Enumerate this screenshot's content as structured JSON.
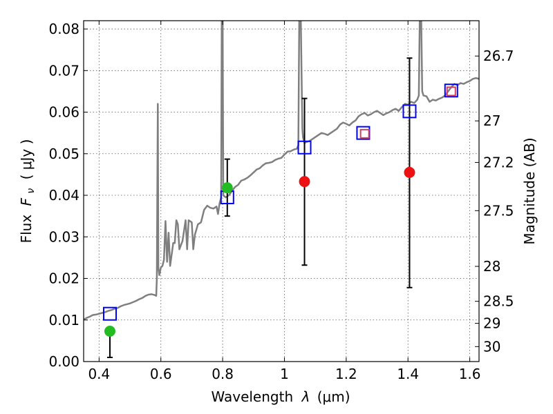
{
  "chart_data": {
    "type": "line",
    "xlabel": "Wavelength",
    "xlabel_symbol": "λ",
    "xlabel_unit": "(μm)",
    "ylabel": "Flux",
    "ylabel_symbol": "F",
    "ylabel_sub": "ν",
    "ylabel_unit": "( μJy )",
    "y2label": "Magnitude (AB)",
    "xlim": [
      0.35,
      1.63
    ],
    "ylim": [
      0.0,
      0.082
    ],
    "grid": true,
    "x_ticks": [
      {
        "value": 0.4,
        "label": "0.4"
      },
      {
        "value": 0.6,
        "label": "0.6"
      },
      {
        "value": 0.8,
        "label": "0.8"
      },
      {
        "value": 1.0,
        "label": "1"
      },
      {
        "value": 1.2,
        "label": "1.2"
      },
      {
        "value": 1.4,
        "label": "1.4"
      },
      {
        "value": 1.6,
        "label": "1.6"
      }
    ],
    "y_ticks": [
      {
        "value": 0.0,
        "label": "0.00"
      },
      {
        "value": 0.01,
        "label": "0.01"
      },
      {
        "value": 0.02,
        "label": "0.02"
      },
      {
        "value": 0.03,
        "label": "0.03"
      },
      {
        "value": 0.04,
        "label": "0.04"
      },
      {
        "value": 0.05,
        "label": "0.05"
      },
      {
        "value": 0.06,
        "label": "0.06"
      },
      {
        "value": 0.07,
        "label": "0.07"
      },
      {
        "value": 0.08,
        "label": "0.08"
      }
    ],
    "y2_ticks": [
      {
        "flux": 0.0735,
        "label": "26.7"
      },
      {
        "flux": 0.0579,
        "label": "27"
      },
      {
        "flux": 0.0479,
        "label": "27.2"
      },
      {
        "flux": 0.0363,
        "label": "27.5"
      },
      {
        "flux": 0.0229,
        "label": "28"
      },
      {
        "flux": 0.0145,
        "label": "28.5"
      },
      {
        "flux": 0.0092,
        "label": "29"
      },
      {
        "flux": 0.0036,
        "label": "30"
      }
    ],
    "series": [
      {
        "kind": "spectrum",
        "color": "#7f7f7f",
        "points": [
          [
            0.35,
            0.0101
          ],
          [
            0.36,
            0.0105
          ],
          [
            0.37,
            0.0108
          ],
          [
            0.38,
            0.0112
          ],
          [
            0.39,
            0.0113
          ],
          [
            0.4,
            0.0115
          ],
          [
            0.41,
            0.0117
          ],
          [
            0.42,
            0.0119
          ],
          [
            0.43,
            0.0122
          ],
          [
            0.44,
            0.0124
          ],
          [
            0.45,
            0.0127
          ],
          [
            0.46,
            0.0129
          ],
          [
            0.47,
            0.0133
          ],
          [
            0.48,
            0.0136
          ],
          [
            0.49,
            0.0138
          ],
          [
            0.5,
            0.014
          ],
          [
            0.51,
            0.0143
          ],
          [
            0.52,
            0.0146
          ],
          [
            0.53,
            0.015
          ],
          [
            0.54,
            0.0153
          ],
          [
            0.55,
            0.0158
          ],
          [
            0.56,
            0.0161
          ],
          [
            0.57,
            0.0162
          ],
          [
            0.58,
            0.016
          ],
          [
            0.585,
            0.0158
          ],
          [
            0.587,
            0.02
          ],
          [
            0.59,
            0.062
          ],
          [
            0.592,
            0.0225
          ],
          [
            0.595,
            0.0208
          ],
          [
            0.6,
            0.0226
          ],
          [
            0.605,
            0.023
          ],
          [
            0.61,
            0.0245
          ],
          [
            0.615,
            0.0338
          ],
          [
            0.62,
            0.024
          ],
          [
            0.625,
            0.031
          ],
          [
            0.63,
            0.023
          ],
          [
            0.64,
            0.0285
          ],
          [
            0.645,
            0.0285
          ],
          [
            0.65,
            0.034
          ],
          [
            0.655,
            0.033
          ],
          [
            0.66,
            0.027
          ],
          [
            0.67,
            0.029
          ],
          [
            0.68,
            0.034
          ],
          [
            0.685,
            0.027
          ],
          [
            0.69,
            0.034
          ],
          [
            0.7,
            0.0335
          ],
          [
            0.705,
            0.027
          ],
          [
            0.71,
            0.0305
          ],
          [
            0.72,
            0.033
          ],
          [
            0.73,
            0.0335
          ],
          [
            0.74,
            0.0365
          ],
          [
            0.75,
            0.0375
          ],
          [
            0.76,
            0.037
          ],
          [
            0.77,
            0.0368
          ],
          [
            0.78,
            0.0373
          ],
          [
            0.785,
            0.0355
          ],
          [
            0.79,
            0.038
          ],
          [
            0.795,
            0.0395
          ],
          [
            0.797,
            0.082
          ],
          [
            0.8,
            0.082
          ],
          [
            0.802,
            0.04
          ],
          [
            0.81,
            0.0395
          ],
          [
            0.82,
            0.04
          ],
          [
            0.83,
            0.041
          ],
          [
            0.84,
            0.042
          ],
          [
            0.85,
            0.0425
          ],
          [
            0.86,
            0.0435
          ],
          [
            0.87,
            0.0438
          ],
          [
            0.88,
            0.0442
          ],
          [
            0.89,
            0.0448
          ],
          [
            0.9,
            0.0455
          ],
          [
            0.91,
            0.0462
          ],
          [
            0.92,
            0.0465
          ],
          [
            0.93,
            0.0472
          ],
          [
            0.94,
            0.0477
          ],
          [
            0.95,
            0.0478
          ],
          [
            0.96,
            0.048
          ],
          [
            0.97,
            0.0485
          ],
          [
            0.98,
            0.0488
          ],
          [
            0.99,
            0.049
          ],
          [
            1.0,
            0.0498
          ],
          [
            1.01,
            0.0505
          ],
          [
            1.02,
            0.0506
          ],
          [
            1.03,
            0.051
          ],
          [
            1.04,
            0.0512
          ],
          [
            1.045,
            0.052
          ],
          [
            1.048,
            0.082
          ],
          [
            1.053,
            0.082
          ],
          [
            1.058,
            0.056
          ],
          [
            1.06,
            0.054
          ],
          [
            1.065,
            0.0525
          ],
          [
            1.07,
            0.0528
          ],
          [
            1.08,
            0.053
          ],
          [
            1.09,
            0.0535
          ],
          [
            1.1,
            0.054
          ],
          [
            1.11,
            0.0545
          ],
          [
            1.12,
            0.055
          ],
          [
            1.13,
            0.0548
          ],
          [
            1.14,
            0.0545
          ],
          [
            1.15,
            0.055
          ],
          [
            1.16,
            0.0555
          ],
          [
            1.17,
            0.056
          ],
          [
            1.18,
            0.057
          ],
          [
            1.19,
            0.0575
          ],
          [
            1.2,
            0.0572
          ],
          [
            1.21,
            0.0568
          ],
          [
            1.22,
            0.0575
          ],
          [
            1.23,
            0.058
          ],
          [
            1.24,
            0.059
          ],
          [
            1.25,
            0.0595
          ],
          [
            1.26,
            0.0598
          ],
          [
            1.27,
            0.0592
          ],
          [
            1.28,
            0.0595
          ],
          [
            1.29,
            0.06
          ],
          [
            1.3,
            0.0603
          ],
          [
            1.31,
            0.0598
          ],
          [
            1.32,
            0.0593
          ],
          [
            1.33,
            0.0597
          ],
          [
            1.34,
            0.06
          ],
          [
            1.35,
            0.0605
          ],
          [
            1.36,
            0.0608
          ],
          [
            1.37,
            0.0603
          ],
          [
            1.38,
            0.0612
          ],
          [
            1.39,
            0.062
          ],
          [
            1.4,
            0.0618
          ],
          [
            1.41,
            0.0625
          ],
          [
            1.42,
            0.0622
          ],
          [
            1.43,
            0.063
          ],
          [
            1.435,
            0.064
          ],
          [
            1.438,
            0.082
          ],
          [
            1.443,
            0.082
          ],
          [
            1.446,
            0.065
          ],
          [
            1.45,
            0.064
          ],
          [
            1.46,
            0.0638
          ],
          [
            1.47,
            0.0625
          ],
          [
            1.48,
            0.063
          ],
          [
            1.49,
            0.0628
          ],
          [
            1.5,
            0.0632
          ],
          [
            1.51,
            0.0635
          ],
          [
            1.52,
            0.064
          ],
          [
            1.53,
            0.065
          ],
          [
            1.54,
            0.066
          ],
          [
            1.55,
            0.0668
          ],
          [
            1.56,
            0.0665
          ],
          [
            1.57,
            0.067
          ],
          [
            1.58,
            0.0668
          ],
          [
            1.59,
            0.0672
          ],
          [
            1.6,
            0.0675
          ],
          [
            1.61,
            0.068
          ],
          [
            1.62,
            0.0682
          ],
          [
            1.63,
            0.068
          ]
        ]
      },
      {
        "kind": "model-squares",
        "marker": "square",
        "color": "#0000ff",
        "points": [
          {
            "x": 0.435,
            "y": 0.0115
          },
          {
            "x": 0.815,
            "y": 0.0395
          },
          {
            "x": 1.065,
            "y": 0.0515
          },
          {
            "x": 1.255,
            "y": 0.055
          },
          {
            "x": 1.405,
            "y": 0.0602
          },
          {
            "x": 1.54,
            "y": 0.0652
          }
        ]
      },
      {
        "kind": "red-squares",
        "marker": "square",
        "color": "#d04060",
        "points": [
          {
            "x": 1.26,
            "y": 0.0548
          },
          {
            "x": 1.54,
            "y": 0.065
          }
        ]
      },
      {
        "kind": "green-points",
        "marker": "circle",
        "color": "#22bb22",
        "points": [
          {
            "x": 0.435,
            "y": 0.0073,
            "err_low": 0.001,
            "err_high": null
          },
          {
            "x": 0.815,
            "y": 0.0418,
            "err_low": 0.035,
            "err_high": 0.0487
          }
        ]
      },
      {
        "kind": "red-points",
        "marker": "circle",
        "color": "#ee1111",
        "points": [
          {
            "x": 1.065,
            "y": 0.0433,
            "err_low": 0.0232,
            "err_high": 0.0633
          },
          {
            "x": 1.405,
            "y": 0.0455,
            "err_low": 0.0178,
            "err_high": 0.073
          }
        ]
      }
    ]
  }
}
